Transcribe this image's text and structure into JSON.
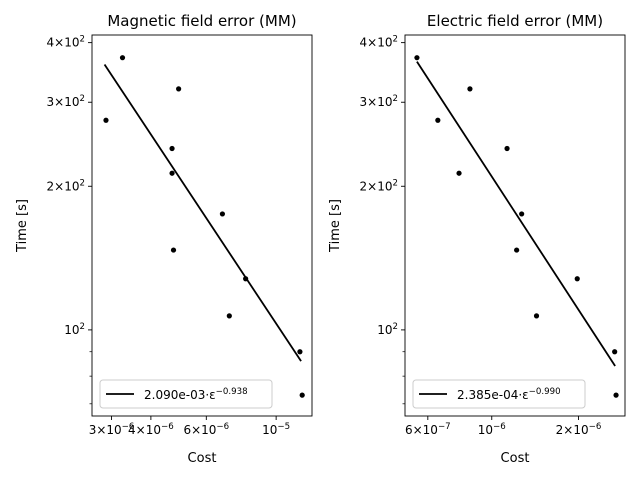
{
  "chart_data": [
    {
      "type": "scatter",
      "title": "Magnetic field error (MM)",
      "xlabel": "Cost",
      "ylabel": "Time [s]",
      "xscale": "log",
      "yscale": "log",
      "xlim": [
        2.6e-06,
        1.3e-05
      ],
      "ylim": [
        66,
        415
      ],
      "xticks": [
        {
          "value": 3e-06,
          "label": "3×10",
          "sup": "−6"
        },
        {
          "value": 4e-06,
          "label": "4×10",
          "sup": "−6"
        },
        {
          "value": 6e-06,
          "label": "6×10",
          "sup": "−6"
        },
        {
          "value": 1e-05,
          "label": "10",
          "sup": "−5"
        }
      ],
      "yticks": [
        {
          "value": 100,
          "label": "10",
          "sup": "2"
        },
        {
          "value": 200,
          "label": "2×10",
          "sup": "2"
        },
        {
          "value": 300,
          "label": "3×10",
          "sup": "2"
        },
        {
          "value": 400,
          "label": "4×10",
          "sup": "2"
        }
      ],
      "points": [
        {
          "x": 2.88e-06,
          "y": 275
        },
        {
          "x": 3.25e-06,
          "y": 372
        },
        {
          "x": 4.67e-06,
          "y": 240
        },
        {
          "x": 4.67e-06,
          "y": 213
        },
        {
          "x": 4.72e-06,
          "y": 147
        },
        {
          "x": 4.9e-06,
          "y": 320
        },
        {
          "x": 6.75e-06,
          "y": 175
        },
        {
          "x": 7.1e-06,
          "y": 107
        },
        {
          "x": 8e-06,
          "y": 128
        },
        {
          "x": 1.19e-05,
          "y": 90
        },
        {
          "x": 1.21e-05,
          "y": 73
        }
      ],
      "fit_line": {
        "x": [
          2.85e-06,
          1.2e-05
        ],
        "y": [
          360,
          86
        ]
      },
      "legend": {
        "label": "2.090e-03·ε",
        "sup": "−0.938",
        "placement": "lower left"
      },
      "colors": {
        "points": "#000000",
        "fit": "#000000"
      }
    },
    {
      "type": "scatter",
      "title": "Electric field error (MM)",
      "xlabel": "Cost",
      "ylabel": "Time [s]",
      "xscale": "log",
      "yscale": "log",
      "xlim": [
        5e-07,
        2.9e-06
      ],
      "ylim": [
        66,
        415
      ],
      "xticks": [
        {
          "value": 6e-07,
          "label": "6×10",
          "sup": "−7"
        },
        {
          "value": 1e-06,
          "label": "10",
          "sup": "−6"
        },
        {
          "value": 2e-06,
          "label": "2×10",
          "sup": "−6"
        }
      ],
      "yticks": [
        {
          "value": 100,
          "label": "10",
          "sup": "2"
        },
        {
          "value": 200,
          "label": "2×10",
          "sup": "2"
        },
        {
          "value": 300,
          "label": "3×10",
          "sup": "2"
        },
        {
          "value": 400,
          "label": "4×10",
          "sup": "2"
        }
      ],
      "points": [
        {
          "x": 5.5e-07,
          "y": 372
        },
        {
          "x": 6.5e-07,
          "y": 275
        },
        {
          "x": 7.7e-07,
          "y": 213
        },
        {
          "x": 8.4e-07,
          "y": 320
        },
        {
          "x": 1.13e-06,
          "y": 240
        },
        {
          "x": 1.27e-06,
          "y": 175
        },
        {
          "x": 1.22e-06,
          "y": 147
        },
        {
          "x": 1.43e-06,
          "y": 107
        },
        {
          "x": 1.98e-06,
          "y": 128
        },
        {
          "x": 2.67e-06,
          "y": 90
        },
        {
          "x": 2.7e-06,
          "y": 73
        }
      ],
      "fit_line": {
        "x": [
          5.5e-07,
          2.68e-06
        ],
        "y": [
          365,
          84
        ]
      },
      "legend": {
        "label": "2.385e-04·ε",
        "sup": "−0.990",
        "placement": "lower left"
      },
      "colors": {
        "points": "#000000",
        "fit": "#000000"
      }
    }
  ]
}
